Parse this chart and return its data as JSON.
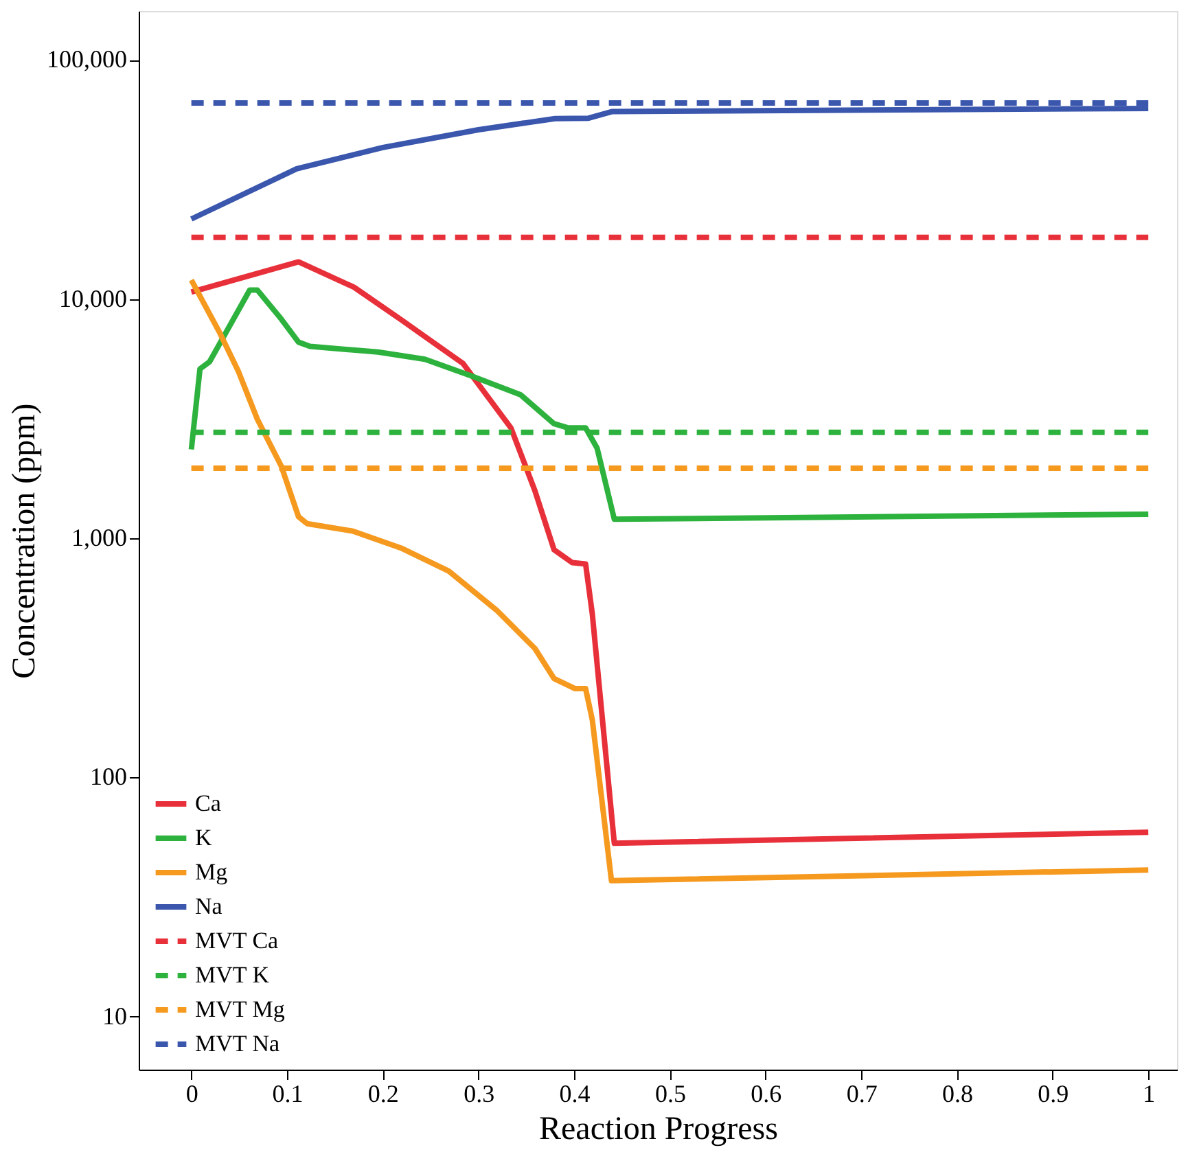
{
  "chart_data": {
    "type": "line",
    "xlabel": "Reaction Progress",
    "ylabel": "Concentration (ppm)",
    "log": "y",
    "grid": false,
    "legend": "bottom left",
    "marker": "none",
    "xlim": [
      -0.055,
      1.03
    ],
    "xticks": [
      0,
      0.1,
      0.2,
      0.3,
      0.4,
      0.5,
      0.6,
      0.7,
      0.8,
      0.9,
      1
    ],
    "ylim": [
      6,
      160000
    ],
    "yticks": [
      10,
      100,
      {
        "value": 1000,
        "label": "1,000"
      },
      {
        "value": 10000,
        "label": "10,000"
      },
      {
        "value": 100000,
        "label": "100,000"
      }
    ],
    "series": [
      {
        "name": "Ca",
        "color": "#e8303a",
        "line_style": "solid",
        "x": [
          0,
          0.112,
          0.17,
          0.219,
          0.284,
          0.334,
          0.359,
          0.379,
          0.398,
          0.412,
          0.419,
          0.442,
          1
        ],
        "values": [
          10700,
          14300,
          11200,
          8200,
          5370,
          2890,
          1580,
          895,
          790,
          780,
          482,
          53,
          59
        ]
      },
      {
        "name": "K",
        "color": "#2db23e",
        "line_style": "solid",
        "x": [
          0,
          0.009,
          0.019,
          0.061,
          0.069,
          0.094,
          0.112,
          0.124,
          0.195,
          0.244,
          0.293,
          0.344,
          0.379,
          0.394,
          0.412,
          0.424,
          0.442,
          1
        ],
        "values": [
          2350,
          5100,
          5460,
          10900,
          10900,
          8240,
          6600,
          6340,
          6000,
          5600,
          4760,
          3980,
          3010,
          2890,
          2890,
          2380,
          1200,
          1260
        ]
      },
      {
        "name": "Mg",
        "color": "#f5991f",
        "line_style": "solid",
        "x": [
          0,
          0.03,
          0.049,
          0.069,
          0.094,
          0.112,
          0.121,
          0.169,
          0.219,
          0.269,
          0.319,
          0.359,
          0.379,
          0.401,
          0.412,
          0.419,
          0.439,
          1
        ],
        "values": [
          12000,
          7180,
          5000,
          3140,
          2000,
          1230,
          1150,
          1070,
          910,
          728,
          500,
          346,
          259,
          235,
          235,
          174,
          37,
          41
        ]
      },
      {
        "name": "Na",
        "color": "#3a56ad",
        "line_style": "solid",
        "x": [
          0,
          0.11,
          0.2,
          0.3,
          0.38,
          0.415,
          0.44,
          1
        ],
        "values": [
          21600,
          35000,
          43000,
          51000,
          56800,
          57000,
          60800,
          62600
        ]
      },
      {
        "name": "MVT Ca",
        "color": "#e8303a",
        "line_style": "dashed",
        "x": [
          0,
          1
        ],
        "values": [
          18100,
          18100
        ]
      },
      {
        "name": "MVT K",
        "color": "#2db23e",
        "line_style": "dashed",
        "x": [
          0,
          1
        ],
        "values": [
          2770,
          2770
        ]
      },
      {
        "name": "MVT Mg",
        "color": "#f5991f",
        "line_style": "dashed",
        "x": [
          0,
          1
        ],
        "values": [
          1960,
          1960
        ]
      },
      {
        "name": "MVT Na",
        "color": "#3a56ad",
        "line_style": "dashed",
        "x": [
          0,
          1
        ],
        "values": [
          66000,
          66000
        ]
      }
    ]
  }
}
